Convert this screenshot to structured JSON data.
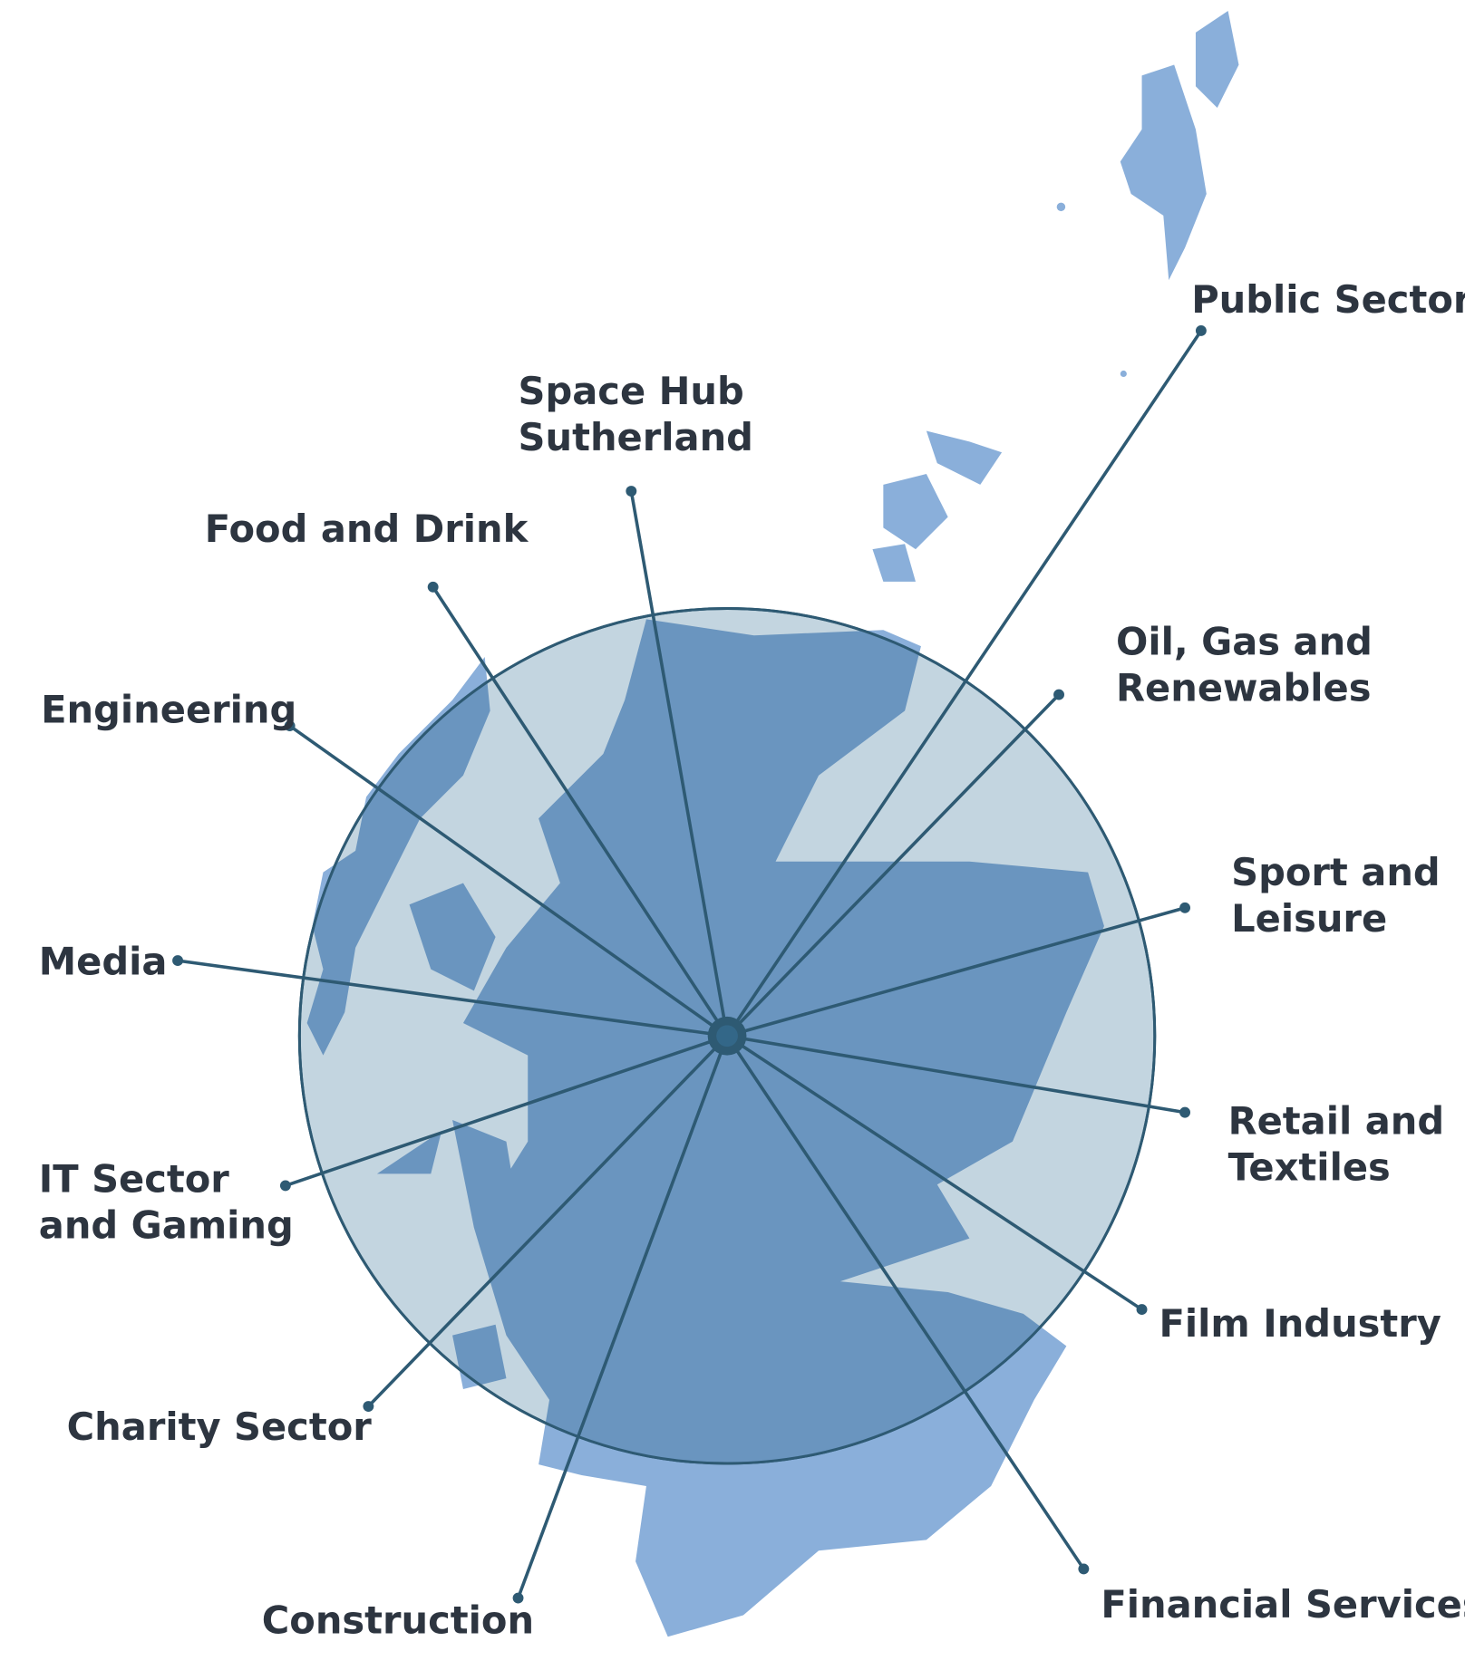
{
  "colors": {
    "line": "#2e5a73",
    "circle": "#c3d5e0",
    "land_inside": "#6a95bf",
    "land_outside": "#8aafda",
    "text": "#2d3540"
  },
  "sectors": [
    {
      "id": "public-sector",
      "lines": [
        "Public Sector"
      ]
    },
    {
      "id": "space-hub-sutherland",
      "lines": [
        "Space Hub",
        "Sutherland"
      ]
    },
    {
      "id": "food-and-drink",
      "lines": [
        "Food and Drink"
      ]
    },
    {
      "id": "engineering",
      "lines": [
        "Engineering"
      ]
    },
    {
      "id": "media",
      "lines": [
        "Media"
      ]
    },
    {
      "id": "it-sector-and-gaming",
      "lines": [
        "IT Sector",
        "and Gaming"
      ]
    },
    {
      "id": "charity-sector",
      "lines": [
        "Charity Sector"
      ]
    },
    {
      "id": "construction",
      "lines": [
        "Construction"
      ]
    },
    {
      "id": "financial-services",
      "lines": [
        "Financial Services"
      ]
    },
    {
      "id": "film-industry",
      "lines": [
        "Film Industry"
      ]
    },
    {
      "id": "retail-and-textiles",
      "lines": [
        "Retail and",
        "Textiles"
      ]
    },
    {
      "id": "sport-and-leisure",
      "lines": [
        "Sport and",
        "Leisure"
      ]
    },
    {
      "id": "oil-gas-and-renewables",
      "lines": [
        "Oil, Gas and",
        "Renewables"
      ]
    }
  ]
}
